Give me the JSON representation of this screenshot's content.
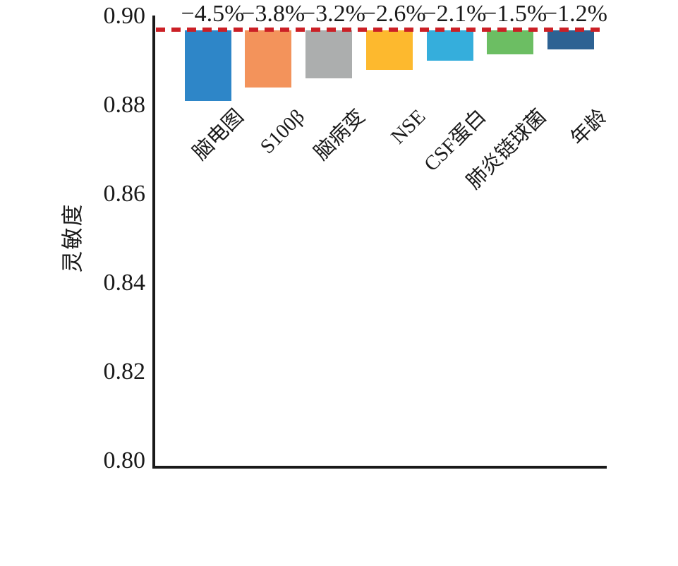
{
  "chart_data": {
    "type": "bar",
    "title": "",
    "ylabel": "灵敏度",
    "xlabel": "",
    "ylim": [
      0.8,
      0.9
    ],
    "grid": false,
    "legend": "none",
    "yticks": [
      {
        "label": "0.90",
        "value": 0.9
      },
      {
        "label": "0.88",
        "value": 0.88
      },
      {
        "label": "0.86",
        "value": 0.86
      },
      {
        "label": "0.84",
        "value": 0.84
      },
      {
        "label": "0.82",
        "value": 0.82
      },
      {
        "label": "0.80",
        "value": 0.8
      }
    ],
    "baseline": {
      "value": 0.897,
      "style": "dashed",
      "color": "#CB2026",
      "meaning": "reference-sensitivity-line"
    },
    "categories": [
      "脑电图",
      "S100β",
      "脑病变",
      "NSE",
      "CSF蛋白",
      "肺炎链球菌",
      "年龄"
    ],
    "series": [
      {
        "name": "灵敏度",
        "values": [
          0.881,
          0.884,
          0.886,
          0.888,
          0.89,
          0.8915,
          0.8925
        ],
        "delta_labels": [
          "−4.5%",
          "−3.8%",
          "−3.2%",
          "−2.6%",
          "−2.1%",
          "−1.5%",
          "−1.2%"
        ],
        "bar_colors": [
          "#2E86C8",
          "#F3935B",
          "#ACAEAE",
          "#FDB92E",
          "#35AEDC",
          "#6CBE63",
          "#2D6293"
        ]
      }
    ],
    "colors": {
      "axis": "#1A1A1A",
      "text": "#1A1A1A",
      "baseline_dash": "#CB2026",
      "background": "#FFFFFF"
    }
  }
}
